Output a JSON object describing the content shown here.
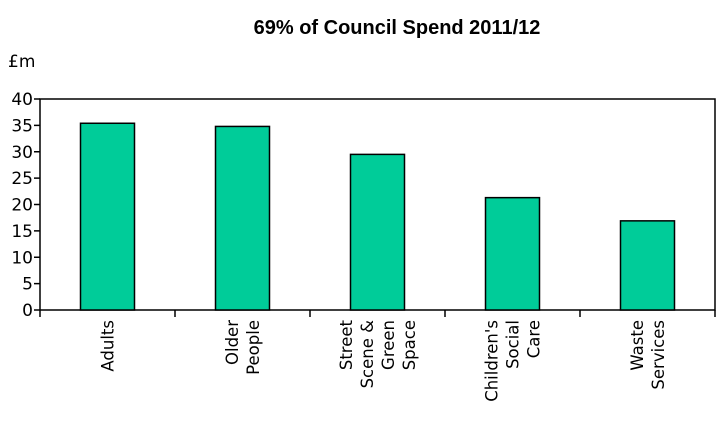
{
  "chart_data": {
    "type": "bar",
    "title": "69% of Council Spend 2011/12",
    "ylabel": "£m",
    "xlabel": "",
    "categories": [
      [
        "Adults"
      ],
      [
        "Older",
        "People"
      ],
      [
        "Street",
        "Scene &",
        "Green",
        "Space"
      ],
      [
        "Children's",
        "Social",
        "Care"
      ],
      [
        "Waste",
        "Services"
      ]
    ],
    "values": [
      35.4,
      34.8,
      29.5,
      21.3,
      16.9
    ],
    "ylim": [
      0,
      40
    ],
    "yticks": [
      0,
      5,
      10,
      15,
      20,
      25,
      30,
      35,
      40
    ],
    "grid": false,
    "legend": "none",
    "colors": {
      "bar_fill": "#00CC99",
      "bar_stroke": "#000000",
      "axis": "#000000"
    }
  }
}
